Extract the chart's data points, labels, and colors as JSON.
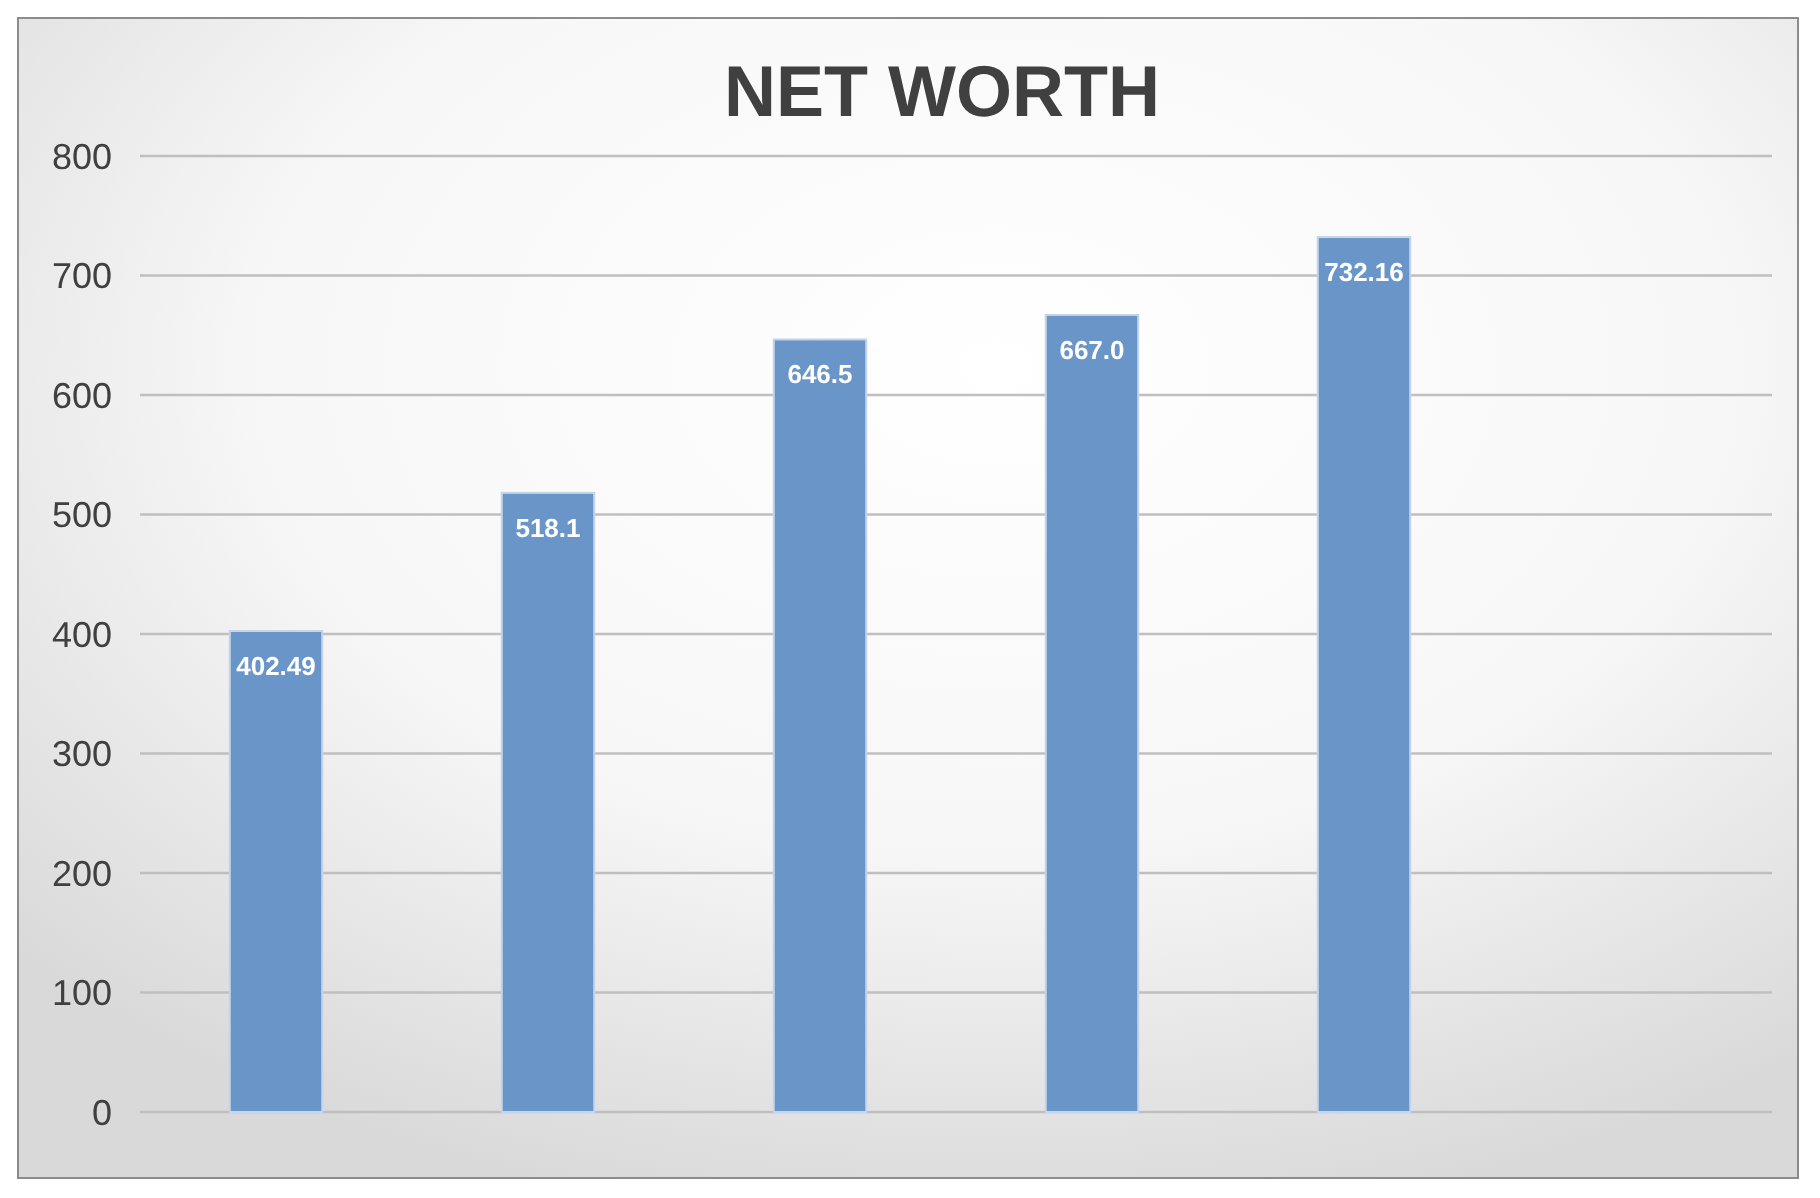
{
  "chart_data": {
    "type": "bar",
    "title": "NET WORTH",
    "categories": [
      null,
      null,
      null,
      null,
      null,
      null
    ],
    "values": [
      402.49,
      518.1,
      646.5,
      667.0,
      732.16,
      null
    ],
    "value_labels": [
      "402.49",
      "518.1",
      "646.5",
      "667.0",
      "732.16",
      null
    ],
    "color": "#6a95c8",
    "ylim": [
      0,
      800
    ],
    "yticks": [
      0,
      100,
      200,
      300,
      400,
      500,
      600,
      700,
      800
    ],
    "grid": "y"
  }
}
